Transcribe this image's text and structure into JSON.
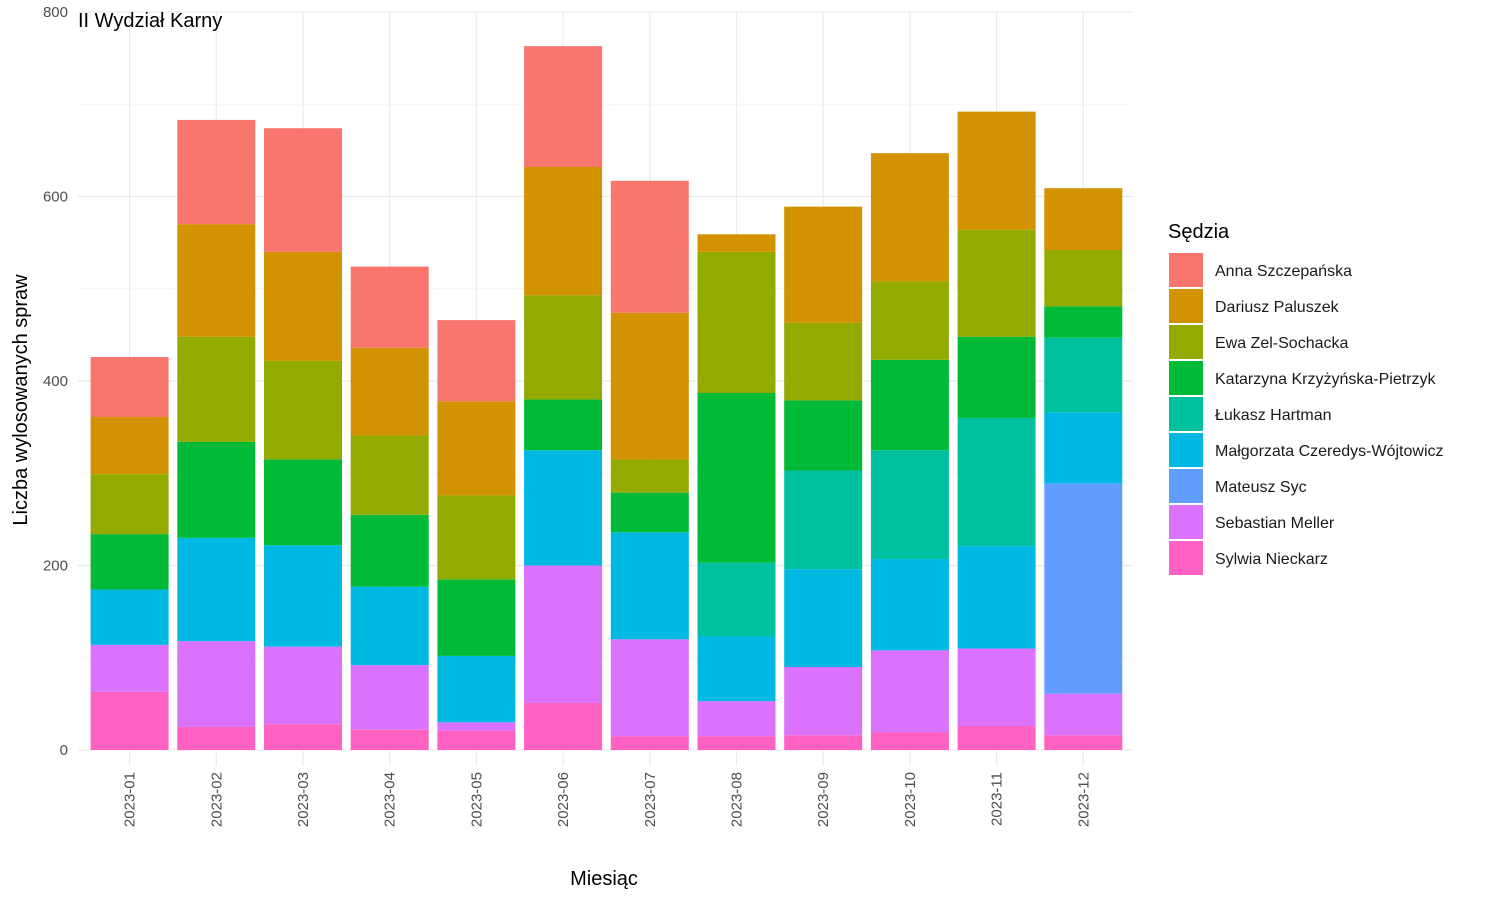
{
  "chart_data": {
    "type": "bar",
    "stacked": true,
    "title": "II Wydział Karny",
    "xlabel": "Miesiąc",
    "ylabel": "Liczba wylosowanych spraw",
    "ylim": [
      0,
      800
    ],
    "yticks": [
      0,
      200,
      400,
      600,
      800
    ],
    "grid": true,
    "legend_title": "Sędzia",
    "legend_position": "right",
    "categories": [
      "2023-01",
      "2023-02",
      "2023-03",
      "2023-04",
      "2023-05",
      "2023-06",
      "2023-07",
      "2023-08",
      "2023-09",
      "2023-10",
      "2023-11",
      "2023-12"
    ],
    "series": [
      {
        "name": "Anna Szczepańska",
        "color": "#F8766D",
        "values": [
          65,
          113,
          134,
          88,
          88,
          131,
          143,
          0,
          0,
          0,
          0,
          0
        ]
      },
      {
        "name": "Dariusz Paluszek",
        "color": "#D39200",
        "values": [
          62,
          122,
          118,
          95,
          102,
          139,
          159,
          19,
          126,
          139,
          128,
          67
        ]
      },
      {
        "name": "Ewa Zel-Sochacka",
        "color": "#93AA00",
        "values": [
          65,
          114,
          107,
          86,
          91,
          113,
          36,
          153,
          84,
          85,
          116,
          61
        ]
      },
      {
        "name": "Katarzyna Krzyżyńska-Pietrzyk",
        "color": "#00BA38",
        "values": [
          60,
          104,
          93,
          78,
          83,
          55,
          43,
          184,
          76,
          98,
          88,
          34
        ]
      },
      {
        "name": "Łukasz Hartman",
        "color": "#00C19F",
        "values": [
          0,
          0,
          0,
          0,
          0,
          0,
          0,
          80,
          107,
          118,
          139,
          81
        ]
      },
      {
        "name": "Małgorzata Czeredys-Wójtowicz",
        "color": "#00B9E3",
        "values": [
          60,
          112,
          110,
          85,
          72,
          125,
          116,
          70,
          106,
          99,
          111,
          77
        ]
      },
      {
        "name": "Mateusz Syc",
        "color": "#619CFF",
        "values": [
          0,
          0,
          0,
          0,
          0,
          0,
          0,
          0,
          0,
          0,
          0,
          228
        ]
      },
      {
        "name": "Sebastian Meller",
        "color": "#DB72FB",
        "values": [
          51,
          93,
          84,
          70,
          9,
          149,
          105,
          38,
          74,
          89,
          84,
          45
        ]
      },
      {
        "name": "Sylwia Nieckarz",
        "color": "#FF61C3",
        "values": [
          63,
          25,
          28,
          22,
          21,
          51,
          15,
          15,
          16,
          19,
          26,
          16
        ]
      }
    ]
  }
}
